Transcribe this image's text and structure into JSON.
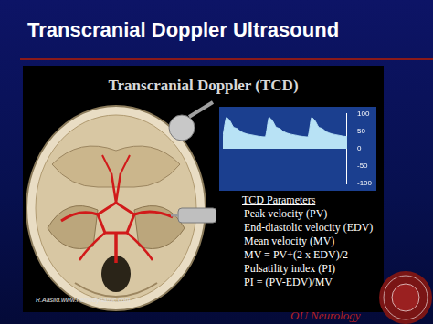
{
  "slide": {
    "title": "Transcranial Doppler Ultrasound",
    "footer": "OU Neurology"
  },
  "panel": {
    "heading": "Transcranial Doppler (TCD)",
    "credit": "R.Aaslid.www.hemodynamic.com",
    "parameters": {
      "title": "TCD Parameters",
      "items": [
        "Peak velocity (PV)",
        "End-diastolic velocity (EDV)",
        "Mean velocity (MV)",
        "MV = PV+(2 x EDV)/2",
        "Pulsatility index (PI)",
        "PI = (PV-EDV)/MV"
      ]
    }
  },
  "chart_data": {
    "type": "line",
    "x": [
      0,
      1,
      2,
      3,
      4,
      5,
      6,
      7,
      8,
      9,
      10,
      11,
      12,
      13,
      14,
      15,
      16,
      17,
      18,
      19,
      20,
      21,
      22,
      23,
      24,
      25,
      26,
      27,
      28,
      29,
      30,
      31,
      32,
      33,
      34,
      35
    ],
    "values": [
      35,
      90,
      80,
      62,
      58,
      50,
      45,
      42,
      40,
      38,
      36,
      35,
      35,
      90,
      80,
      62,
      58,
      50,
      45,
      42,
      40,
      38,
      36,
      35,
      35,
      90,
      80,
      62,
      58,
      50,
      45,
      42,
      40,
      38,
      36,
      35
    ],
    "xlim": [
      0,
      35
    ],
    "ylim": [
      -100,
      100
    ],
    "yticks": [
      -100,
      -50,
      0,
      50,
      100
    ],
    "color": "#b8e2f5",
    "grid": false,
    "tick_labels": "y"
  }
}
